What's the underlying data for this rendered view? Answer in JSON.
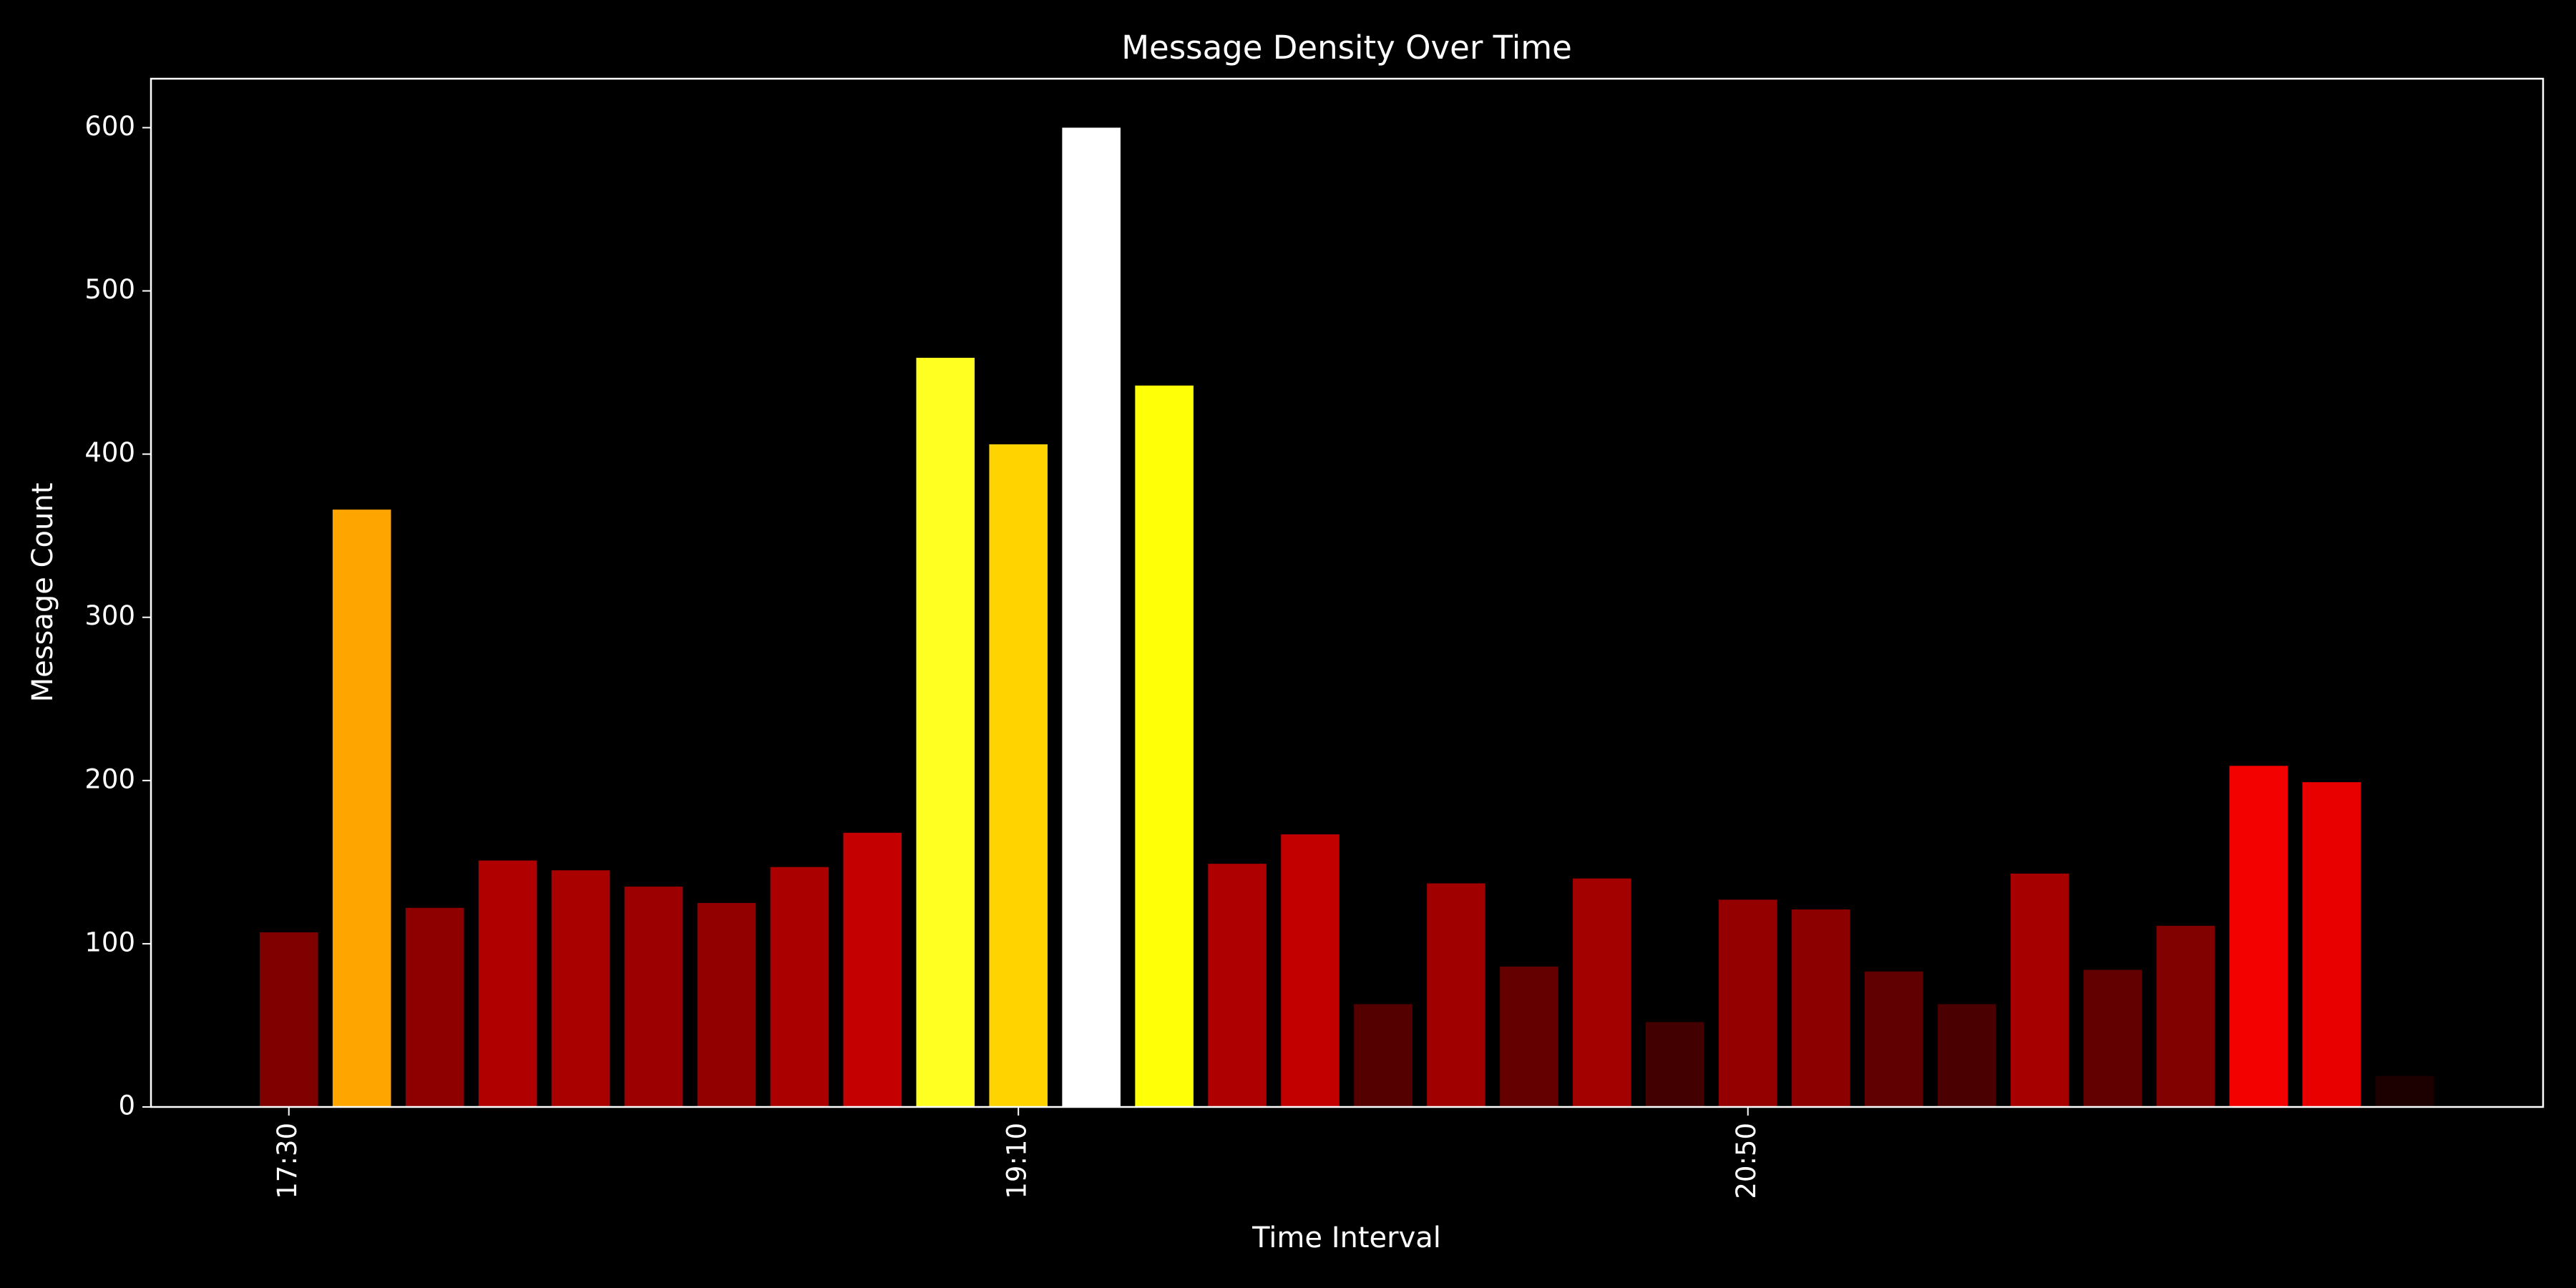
{
  "chart_data": {
    "type": "bar",
    "title": "Message Density Over Time",
    "x_label": "Time Interval",
    "y_label": "Message Count",
    "categories": [
      "17:30",
      null,
      null,
      null,
      null,
      null,
      null,
      null,
      null,
      null,
      "19:10",
      null,
      null,
      null,
      null,
      null,
      null,
      null,
      null,
      null,
      "20:50",
      null,
      null,
      null,
      null,
      null,
      null,
      null,
      null,
      null
    ],
    "values": [
      107,
      366,
      122,
      151,
      145,
      135,
      125,
      147,
      168,
      459,
      406,
      600,
      442,
      149,
      167,
      63,
      137,
      86,
      140,
      52,
      127,
      121,
      83,
      63,
      143,
      84,
      111,
      209,
      199,
      19
    ],
    "colors": [
      "#800000",
      "#ffa500",
      "#8e0000",
      "#b00000",
      "#a90000",
      "#9d0000",
      "#920000",
      "#ab0000",
      "#c40000",
      "#ffff22",
      "#ffd300",
      "#ffffff",
      "#ffff07",
      "#ae0000",
      "#c30000",
      "#540000",
      "#a00000",
      "#640000",
      "#a30000",
      "#420000",
      "#940000",
      "#8d0000",
      "#610000",
      "#4a0000",
      "#a70000",
      "#620000",
      "#810000",
      "#f30000",
      "#e80000",
      "#1c0000"
    ],
    "ylim": [
      0,
      630
    ],
    "yticks": [
      0,
      100,
      200,
      300,
      400,
      500,
      600
    ],
    "grid": false
  }
}
